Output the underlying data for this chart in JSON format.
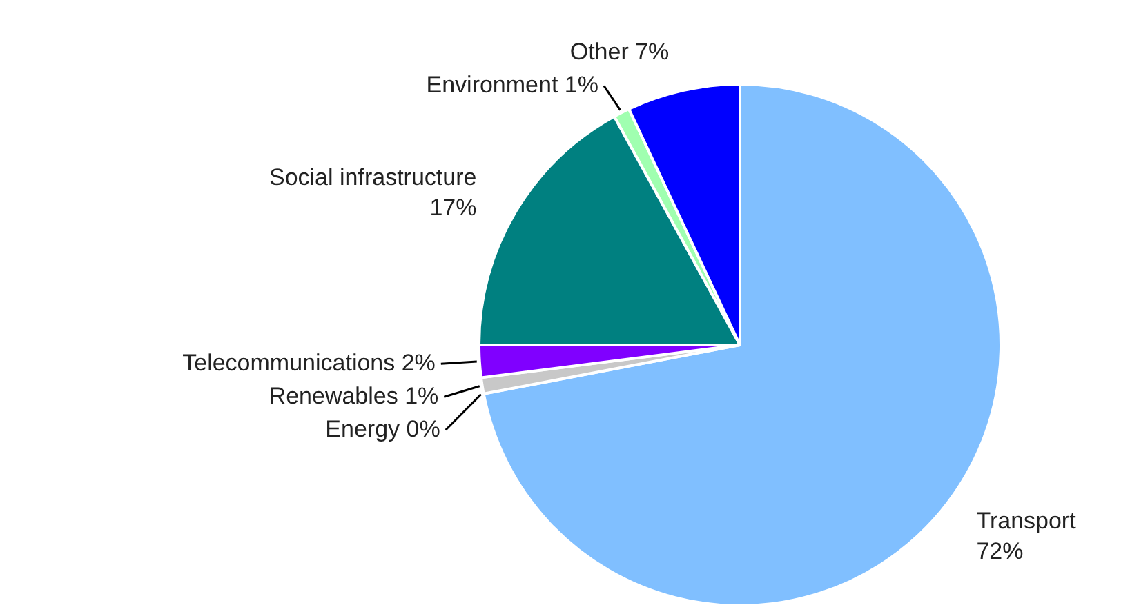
{
  "chart_data": {
    "type": "pie",
    "categories": [
      "Transport",
      "Energy",
      "Renewables",
      "Telecommunications",
      "Social infrastructure",
      "Environment",
      "Other"
    ],
    "values": [
      72,
      0,
      1,
      2,
      17,
      1,
      7
    ],
    "value_labels": [
      "72%",
      "0%",
      "1%",
      "2%",
      "17%",
      "1%",
      "7%"
    ],
    "colors": [
      "#80bfff",
      "#ff8000",
      "#c8c8c8",
      "#8000ff",
      "#008080",
      "#a0ffb0",
      "#0000ff"
    ],
    "legend": false
  }
}
